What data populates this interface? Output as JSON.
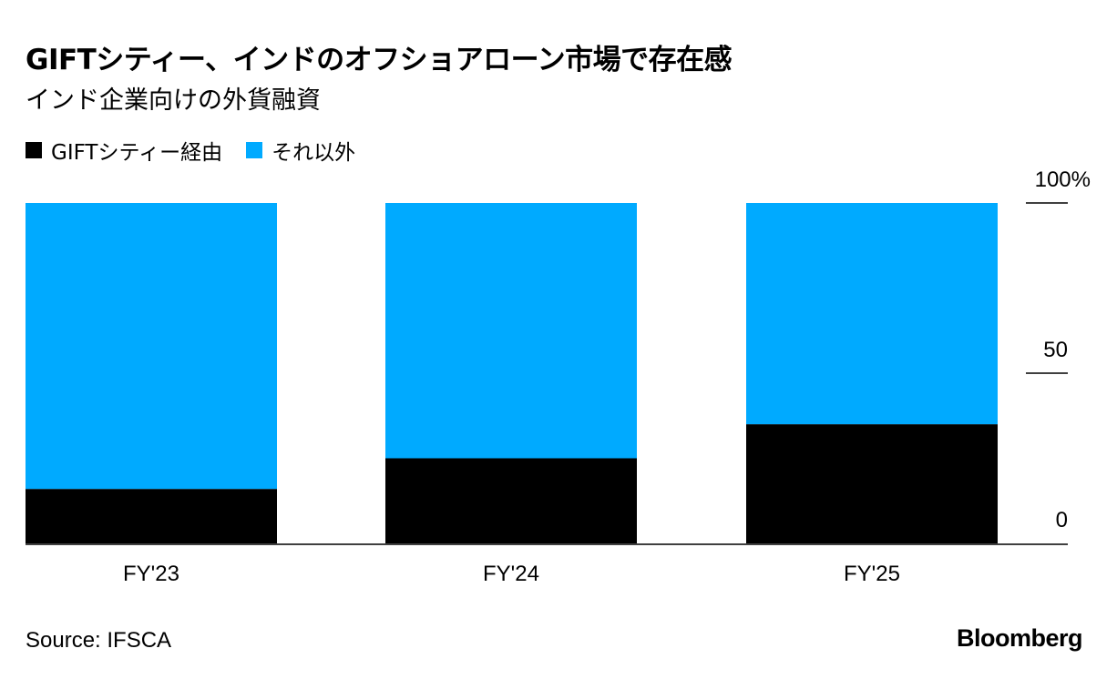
{
  "title": "GIFTシティー、インドのオフショアローン市場で存在感",
  "subtitle": "インド企業向けの外貨融資",
  "source": "Source: IFSCA",
  "logo": "Bloomberg",
  "chart_data": {
    "type": "bar",
    "stacked": true,
    "categories": [
      "FY'23",
      "FY'24",
      "FY'25"
    ],
    "series": [
      {
        "name": "GIFTシティー経由",
        "color": "#000000",
        "values": [
          16,
          25,
          35
        ]
      },
      {
        "name": "それ以外",
        "color": "#00AAFF",
        "values": [
          84,
          75,
          65
        ]
      }
    ],
    "ylim": [
      0,
      100
    ],
    "yticks": [
      {
        "value": 0,
        "label": "0"
      },
      {
        "value": 50,
        "label": "50"
      },
      {
        "value": 100,
        "label": "100%"
      }
    ],
    "legend": "top-left",
    "grid": false
  }
}
